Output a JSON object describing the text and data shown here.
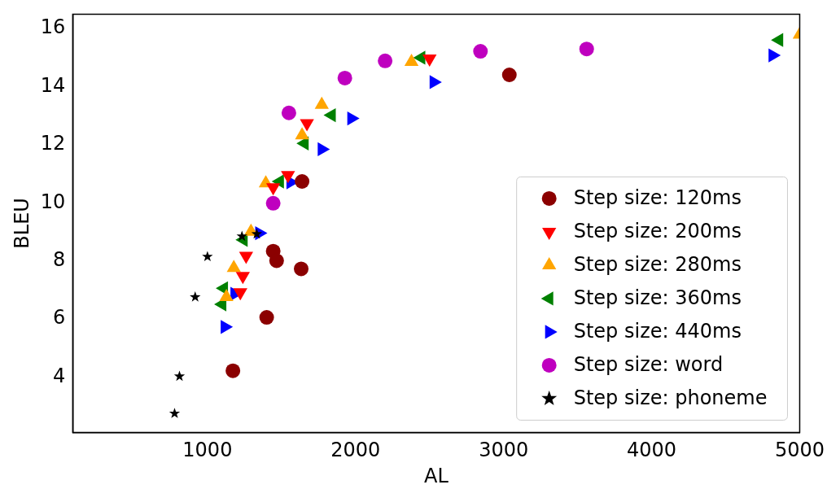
{
  "chart_data": {
    "type": "scatter",
    "xlabel": "AL",
    "ylabel": "BLEU",
    "xlim": [
      90,
      5000
    ],
    "xticks": [
      1000,
      2000,
      3000,
      4000,
      5000
    ],
    "ylim": [
      2.1,
      16.5
    ],
    "yticks": [
      4,
      6,
      8,
      10,
      12,
      14,
      16
    ],
    "grid": false,
    "legend": "bottom right",
    "series": [
      {
        "name": "Step size: 120ms",
        "color": "#8b0000",
        "marker": "circle",
        "x": [
          1172,
          1400,
          1444,
          1467,
          1633,
          1639,
          3039
        ],
        "values": [
          4.22,
          6.06,
          8.34,
          8.01,
          7.73,
          10.74,
          14.41
        ]
      },
      {
        "name": "Step size: 200ms",
        "color": "#ff0000",
        "marker": "triangle",
        "x": [
          1222,
          1239,
          1261,
          1444,
          1544,
          1672,
          2500
        ],
        "values": [
          6.92,
          7.48,
          8.18,
          10.54,
          10.96,
          12.74,
          14.97
        ]
      },
      {
        "name": "Step size: 280ms",
        "color": "#ffa500",
        "marker": "triangle",
        "x": [
          1128,
          1178,
          1294,
          1394,
          1639,
          1772,
          2378,
          5000
        ],
        "values": [
          6.76,
          7.76,
          9.01,
          10.68,
          12.33,
          13.38,
          14.86,
          15.8
        ]
      },
      {
        "name": "Step size: 360ms",
        "color": "#008000",
        "marker": "triangle",
        "x": [
          1100,
          1111,
          1244,
          1489,
          1656,
          1839,
          2444,
          4861
        ],
        "values": [
          6.51,
          7.06,
          8.73,
          10.74,
          12.05,
          13.02,
          15.0,
          15.61
        ]
      },
      {
        "name": "Step size: 440ms",
        "color": "#0000ff",
        "marker": "triangle",
        "x": [
          1117,
          1183,
          1350,
          1561,
          1772,
          1972,
          2528,
          4817
        ],
        "values": [
          5.73,
          6.87,
          8.96,
          10.71,
          11.85,
          12.91,
          14.16,
          15.08
        ]
      },
      {
        "name": "Step size: word",
        "color": "#bf00bf",
        "marker": "circle",
        "x": [
          1444,
          1550,
          1928,
          2200,
          2844,
          3561
        ],
        "values": [
          9.99,
          13.1,
          14.3,
          14.89,
          15.22,
          15.3
        ]
      },
      {
        "name": "Step size: phoneme",
        "color": "#000000",
        "marker": "star",
        "x": [
          778,
          811,
          917,
          1000,
          1233,
          1333
        ],
        "values": [
          2.75,
          4.03,
          6.76,
          8.15,
          8.85,
          8.93
        ]
      }
    ]
  }
}
